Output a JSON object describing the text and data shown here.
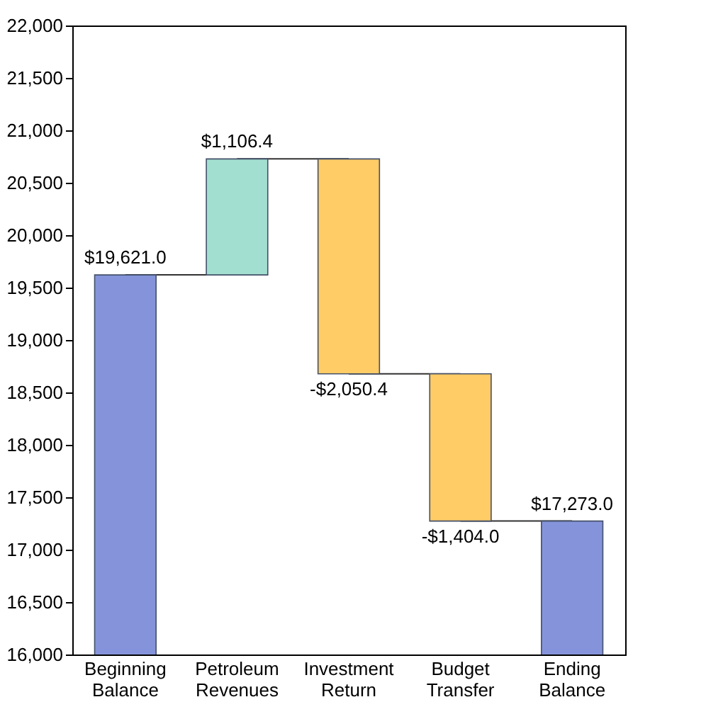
{
  "chart_data": {
    "type": "bar",
    "categories": [
      "Beginning Balance",
      "Petroleum Revenues",
      "Investment Return",
      "Budget Transfer",
      "Ending Balance"
    ],
    "values": [
      19621.0,
      1106.4,
      -2050.4,
      -1404.0,
      17273.0
    ],
    "base": [
      null,
      19621.0,
      20727.4,
      18677.0,
      null
    ],
    "colors": [
      "#8594da",
      "#a3dfd0",
      "#ffcc66",
      "#ffcc66",
      "#8594da"
    ],
    "value_labels": [
      "$19,621.0",
      "$1,106.4",
      "-$2,050.4",
      "-$1,404.0",
      "$17,273.0"
    ],
    "ylim": [
      16000,
      22000
    ],
    "yticks": [
      {
        "value": 16000,
        "label": "16,000"
      },
      {
        "value": 16500,
        "label": "16,500"
      },
      {
        "value": 17000,
        "label": "17,000"
      },
      {
        "value": 17500,
        "label": "17,500"
      },
      {
        "value": 18000,
        "label": "18,000"
      },
      {
        "value": 18500,
        "label": "18,500"
      },
      {
        "value": 19000,
        "label": "19,000"
      },
      {
        "value": 19500,
        "label": "19,500"
      },
      {
        "value": 20000,
        "label": "20,000"
      },
      {
        "value": 20500,
        "label": "20,500"
      },
      {
        "value": 21000,
        "label": "21,000"
      },
      {
        "value": 21500,
        "label": "21,500"
      },
      {
        "value": 22000,
        "label": "22,000"
      }
    ],
    "grid": false
  }
}
